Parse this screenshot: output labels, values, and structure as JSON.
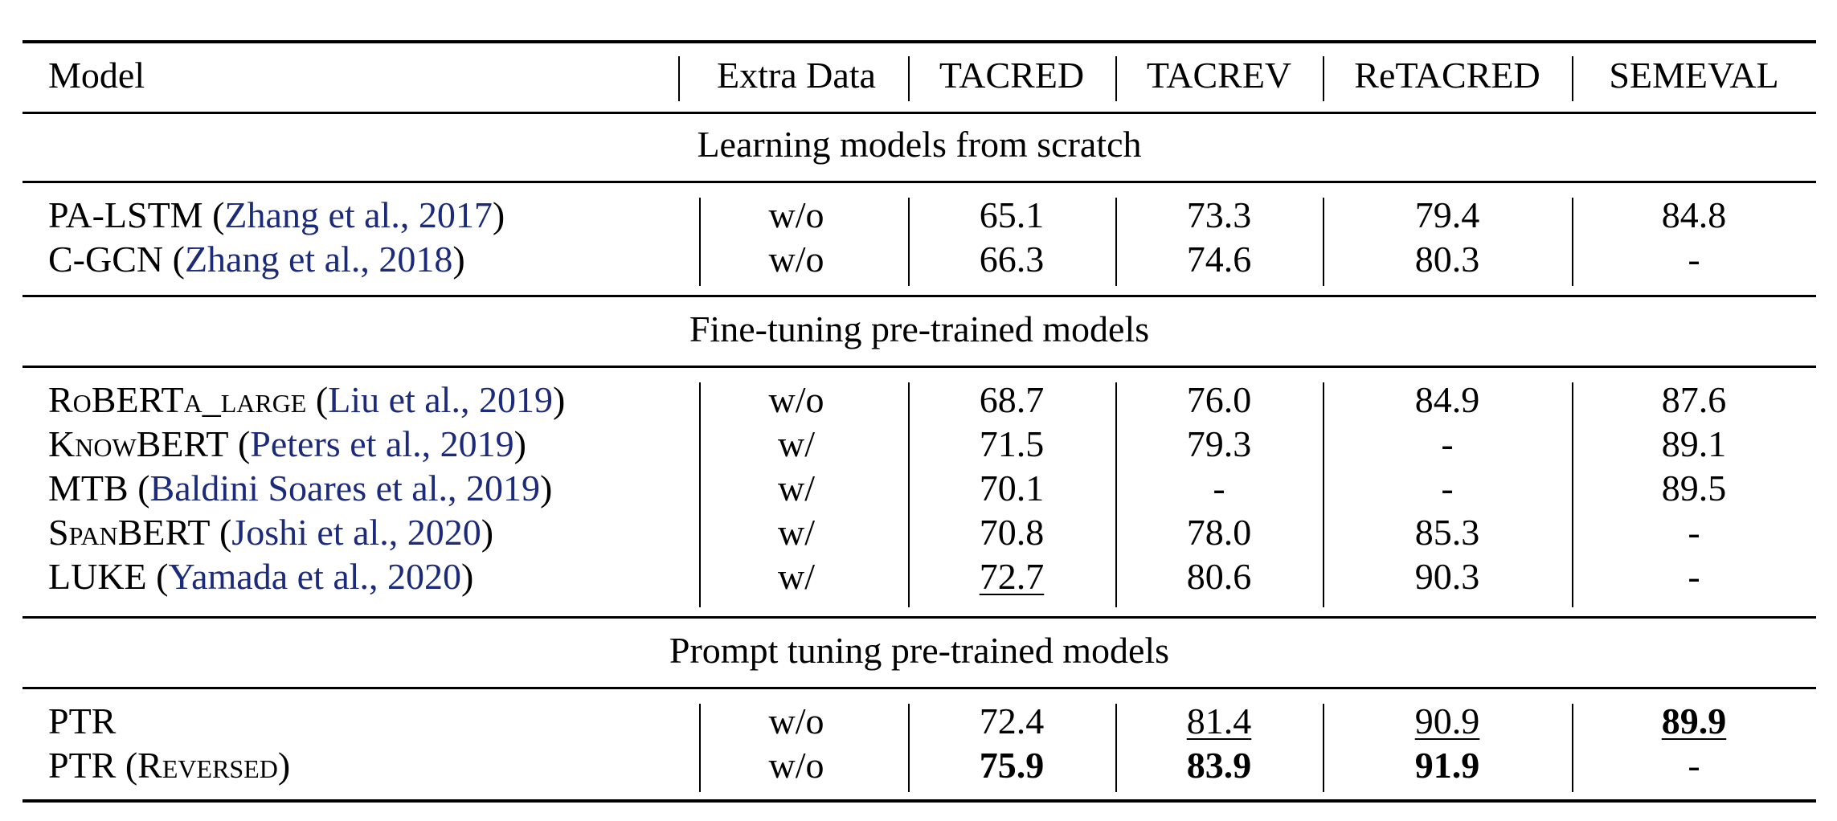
{
  "header": [
    "Model",
    "Extra Data",
    "TACRED",
    "TACREV",
    "ReTACRED",
    "SEMEVAL"
  ],
  "sections": [
    {
      "title": "Learning models from scratch",
      "rows": [
        {
          "name": "PA-LSTM",
          "cite": "Zhang et al., 2017",
          "extra": "w/o",
          "v": [
            "65.1",
            "73.3",
            "79.4",
            "84.8"
          ]
        },
        {
          "name": "C-GCN",
          "cite": "Zhang et al., 2018",
          "extra": "w/o",
          "v": [
            "66.3",
            "74.6",
            "80.3",
            "-"
          ]
        }
      ]
    },
    {
      "title": "Fine-tuning pre-trained models",
      "rows": [
        {
          "name": "RoBERTa_large",
          "cite": "Liu et al., 2019",
          "extra": "w/o",
          "v": [
            "68.7",
            "76.0",
            "84.9",
            "87.6"
          ]
        },
        {
          "name": "KnowBERT",
          "cite": "Peters et al., 2019",
          "extra": "w/",
          "v": [
            "71.5",
            "79.3",
            "-",
            "89.1"
          ]
        },
        {
          "name": "MTB",
          "cite": "Baldini Soares et al., 2019",
          "extra": "w/",
          "v": [
            "70.1",
            "-",
            "-",
            "89.5"
          ]
        },
        {
          "name": "SpanBERT",
          "cite": "Joshi et al., 2020",
          "extra": "w/",
          "v": [
            "70.8",
            "78.0",
            "85.3",
            "-"
          ]
        },
        {
          "name": "LUKE",
          "cite": "Yamada et al., 2020",
          "extra": "w/",
          "v": [
            "72.7",
            "80.6",
            "90.3",
            "-"
          ]
        }
      ]
    },
    {
      "title": "Prompt tuning pre-trained models",
      "rows": [
        {
          "name": "PTR",
          "extra": "w/o",
          "v": [
            "72.4",
            "81.4",
            "90.9",
            "89.9"
          ]
        },
        {
          "name": "PTR (Reversed)",
          "extra": "w/o",
          "v": [
            "75.9",
            "83.9",
            "91.9",
            "-"
          ]
        }
      ]
    }
  ]
}
